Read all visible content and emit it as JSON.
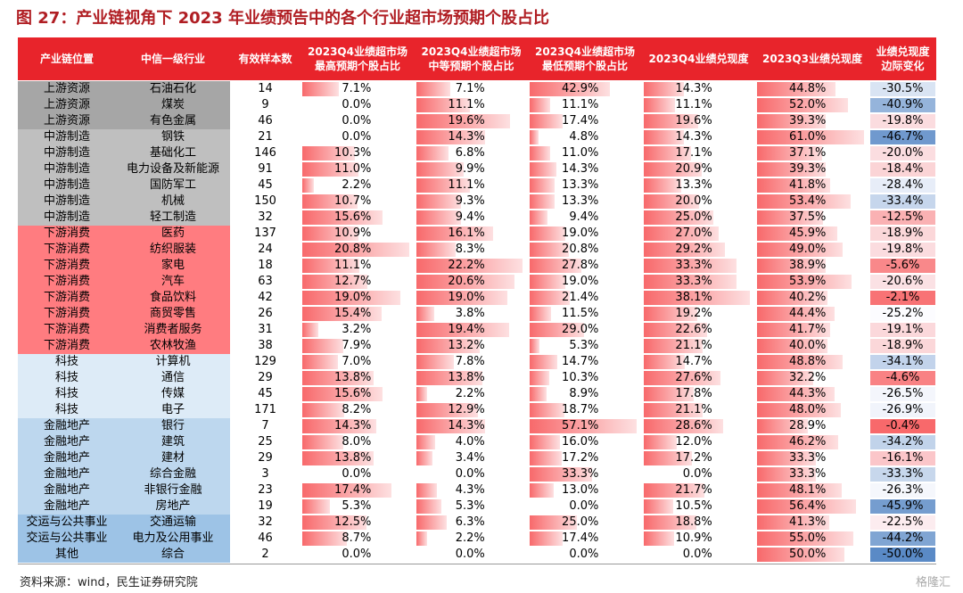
{
  "title": "图 27：产业链视角下 2023 年业绩预告中的各个行业超市场预期个股占比",
  "table": {
    "header": [
      [
        "产业链位置"
      ],
      [
        "中信一级行业"
      ],
      [
        "有效样本数"
      ],
      [
        "2023Q4业绩超市场",
        "最高预期个股占比"
      ],
      [
        "2023Q4业绩超市场",
        "中等预期个股占比"
      ],
      [
        "2023Q4业绩超市场",
        "最低预期个股占比"
      ],
      [
        "2023Q4业绩兑现度"
      ],
      [
        "2023Q3业绩兑现度"
      ],
      [
        "业绩兑现度",
        "边际变化"
      ]
    ],
    "rows": [
      [
        "上游资源",
        "石油石化",
        "14",
        "7.1%",
        "7.1%",
        "42.9%",
        "14.3%",
        "44.8%",
        "-30.5%"
      ],
      [
        "上游资源",
        "煤炭",
        "9",
        "0.0%",
        "11.1%",
        "11.1%",
        "11.1%",
        "52.0%",
        "-40.9%"
      ],
      [
        "上游资源",
        "有色金属",
        "46",
        "0.0%",
        "19.6%",
        "17.4%",
        "19.6%",
        "39.3%",
        "-19.8%"
      ],
      [
        "中游制造",
        "钢铁",
        "21",
        "0.0%",
        "14.3%",
        "4.8%",
        "14.3%",
        "61.0%",
        "-46.7%"
      ],
      [
        "中游制造",
        "基础化工",
        "146",
        "10.3%",
        "6.8%",
        "11.0%",
        "17.1%",
        "37.1%",
        "-20.0%"
      ],
      [
        "中游制造",
        "电力设备及新能源",
        "91",
        "11.0%",
        "9.9%",
        "14.3%",
        "20.9%",
        "39.3%",
        "-18.4%"
      ],
      [
        "中游制造",
        "国防军工",
        "45",
        "2.2%",
        "11.1%",
        "13.3%",
        "13.3%",
        "41.8%",
        "-28.4%"
      ],
      [
        "中游制造",
        "机械",
        "150",
        "10.7%",
        "9.3%",
        "13.3%",
        "20.0%",
        "53.4%",
        "-33.4%"
      ],
      [
        "中游制造",
        "轻工制造",
        "32",
        "15.6%",
        "9.4%",
        "9.4%",
        "25.0%",
        "37.5%",
        "-12.5%"
      ],
      [
        "下游消费",
        "医药",
        "137",
        "10.9%",
        "16.1%",
        "19.0%",
        "27.0%",
        "45.9%",
        "-18.9%"
      ],
      [
        "下游消费",
        "纺织服装",
        "24",
        "20.8%",
        "8.3%",
        "20.8%",
        "29.2%",
        "49.0%",
        "-19.8%"
      ],
      [
        "下游消费",
        "家电",
        "18",
        "11.1%",
        "22.2%",
        "27.8%",
        "33.3%",
        "38.9%",
        "-5.6%"
      ],
      [
        "下游消费",
        "汽车",
        "63",
        "12.7%",
        "20.6%",
        "19.0%",
        "33.3%",
        "53.9%",
        "-20.6%"
      ],
      [
        "下游消费",
        "食品饮料",
        "42",
        "19.0%",
        "19.0%",
        "21.4%",
        "38.1%",
        "40.2%",
        "-2.1%"
      ],
      [
        "下游消费",
        "商贸零售",
        "26",
        "15.4%",
        "3.8%",
        "11.5%",
        "19.2%",
        "44.4%",
        "-25.2%"
      ],
      [
        "下游消费",
        "消费者服务",
        "31",
        "3.2%",
        "19.4%",
        "29.0%",
        "22.6%",
        "41.7%",
        "-19.1%"
      ],
      [
        "下游消费",
        "农林牧渔",
        "38",
        "7.9%",
        "13.2%",
        "5.3%",
        "21.1%",
        "40.0%",
        "-18.9%"
      ],
      [
        "科技",
        "计算机",
        "129",
        "7.0%",
        "7.8%",
        "14.7%",
        "14.7%",
        "48.8%",
        "-34.1%"
      ],
      [
        "科技",
        "通信",
        "29",
        "13.8%",
        "13.8%",
        "10.3%",
        "27.6%",
        "32.2%",
        "-4.6%"
      ],
      [
        "科技",
        "传媒",
        "45",
        "15.6%",
        "2.2%",
        "8.9%",
        "17.8%",
        "44.3%",
        "-26.5%"
      ],
      [
        "科技",
        "电子",
        "171",
        "8.2%",
        "12.9%",
        "18.7%",
        "21.1%",
        "48.0%",
        "-26.9%"
      ],
      [
        "金融地产",
        "银行",
        "7",
        "14.3%",
        "14.3%",
        "57.1%",
        "28.6%",
        "28.9%",
        "-0.4%"
      ],
      [
        "金融地产",
        "建筑",
        "25",
        "8.0%",
        "4.0%",
        "16.0%",
        "12.0%",
        "46.2%",
        "-34.2%"
      ],
      [
        "金融地产",
        "建材",
        "29",
        "13.8%",
        "3.4%",
        "17.2%",
        "17.2%",
        "33.3%",
        "-16.1%"
      ],
      [
        "金融地产",
        "综合金融",
        "3",
        "0.0%",
        "0.0%",
        "33.3%",
        "0.0%",
        "33.3%",
        "-33.3%"
      ],
      [
        "金融地产",
        "非银行金融",
        "23",
        "17.4%",
        "4.3%",
        "13.0%",
        "21.7%",
        "48.1%",
        "-26.3%"
      ],
      [
        "金融地产",
        "房地产",
        "19",
        "5.3%",
        "5.3%",
        "0.0%",
        "10.5%",
        "56.4%",
        "-45.9%"
      ],
      [
        "交运与公共事业",
        "交通运输",
        "32",
        "12.5%",
        "6.3%",
        "25.0%",
        "18.8%",
        "41.3%",
        "-22.5%"
      ],
      [
        "交运与公共事业",
        "电力及公用事业",
        "46",
        "8.7%",
        "2.2%",
        "17.4%",
        "10.9%",
        "55.0%",
        "-44.2%"
      ],
      [
        "其他",
        "综合",
        "2",
        "0.0%",
        "0.0%",
        "0.0%",
        "0.0%",
        "50.0%",
        "-50.0%"
      ]
    ],
    "row_colors": [
      "#a6a6a6",
      "#a6a6a6",
      "#a6a6a6",
      "#bfbfbf",
      "#bfbfbf",
      "#bfbfbf",
      "#bfbfbf",
      "#bfbfbf",
      "#bfbfbf",
      "#ff7c80",
      "#ff7c80",
      "#ff7c80",
      "#ff7c80",
      "#ff7c80",
      "#ff7c80",
      "#ff7c80",
      "#ff7c80",
      "#ddebf7",
      "#ddebf7",
      "#ddebf7",
      "#ddebf7",
      "#bdd7ee",
      "#bdd7ee",
      "#bdd7ee",
      "#bdd7ee",
      "#bdd7ee",
      "#bdd7ee",
      "#9dc3e6",
      "#9dc3e6",
      "#9dc3e6"
    ],
    "header_color": "#e8242b"
  },
  "source": "资料来源：wind，民生证券研究院",
  "watermark": "格隆汇"
}
